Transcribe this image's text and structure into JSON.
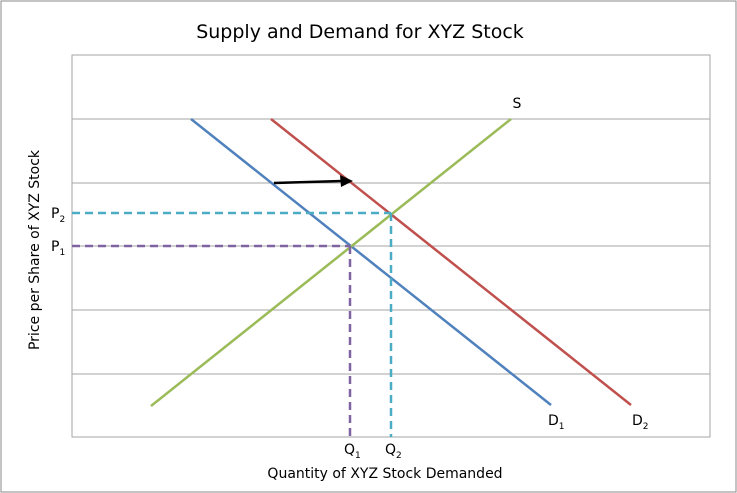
{
  "title": "Supply and Demand for XYZ Stock",
  "x_axis_label": "Quantity of XYZ Stock Demanded",
  "y_axis_label": "Price per Share of XYZ Stock",
  "curves": {
    "supply": {
      "label": "S"
    },
    "demand_1": {
      "label": "D",
      "sub": "1"
    },
    "demand_2": {
      "label": "D",
      "sub": "2"
    }
  },
  "price_labels": [
    {
      "label": "P",
      "sub": "2"
    },
    {
      "label": "P",
      "sub": "1"
    }
  ],
  "quantity_labels": [
    {
      "label": "Q",
      "sub": "1"
    },
    {
      "label": "Q",
      "sub": "2"
    }
  ]
}
